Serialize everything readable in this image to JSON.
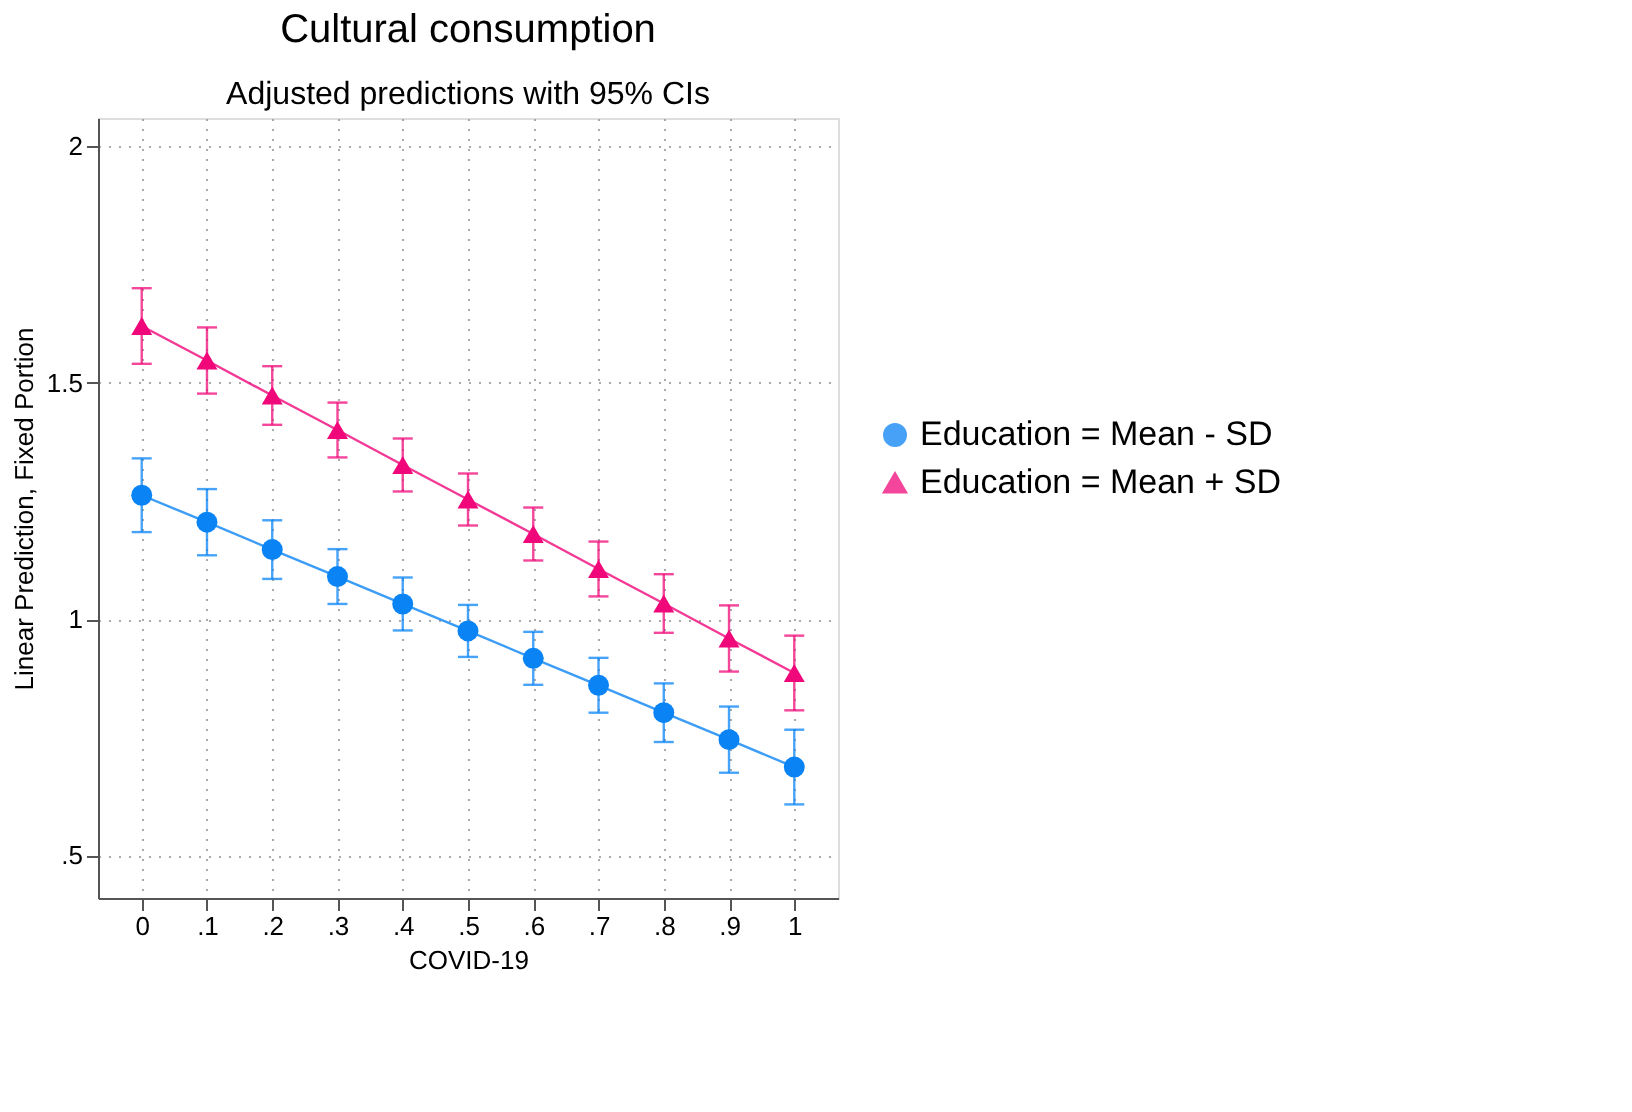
{
  "chart_data": {
    "type": "line",
    "title": "Cultural consumption",
    "subtitle": "Adjusted predictions with 95% CIs",
    "xlabel": "COVID-19",
    "ylabel": "Linear Prediction, Fixed Portion",
    "x": [
      0,
      0.1,
      0.2,
      0.3,
      0.4,
      0.5,
      0.6,
      0.7,
      0.8,
      0.9,
      1
    ],
    "series": [
      {
        "name": "Education = Mean - SD",
        "color": "#0a84f5",
        "marker": "circle",
        "values": [
          1.262,
          1.205,
          1.147,
          1.09,
          1.032,
          0.975,
          0.917,
          0.86,
          0.802,
          0.745,
          0.687
        ],
        "errors": [
          0.078,
          0.07,
          0.062,
          0.058,
          0.056,
          0.055,
          0.056,
          0.058,
          0.062,
          0.07,
          0.079
        ]
      },
      {
        "name": "Education = Mean + SD",
        "color": "#f0087a",
        "marker": "triangle",
        "values": [
          1.62,
          1.547,
          1.473,
          1.4,
          1.326,
          1.253,
          1.18,
          1.106,
          1.033,
          0.959,
          0.886
        ],
        "errors": [
          0.08,
          0.07,
          0.062,
          0.058,
          0.056,
          0.055,
          0.056,
          0.058,
          0.062,
          0.07,
          0.079
        ]
      }
    ],
    "xlim": [
      -0.067,
      1.067
    ],
    "xticks": [
      {
        "value": 0,
        "label": "0"
      },
      {
        "value": 0.1,
        "label": ".1"
      },
      {
        "value": 0.2,
        "label": ".2"
      },
      {
        "value": 0.3,
        "label": ".3"
      },
      {
        "value": 0.4,
        "label": ".4"
      },
      {
        "value": 0.5,
        "label": ".5"
      },
      {
        "value": 0.6,
        "label": ".6"
      },
      {
        "value": 0.7,
        "label": ".7"
      },
      {
        "value": 0.8,
        "label": ".8"
      },
      {
        "value": 0.9,
        "label": ".9"
      },
      {
        "value": 1,
        "label": "1"
      }
    ],
    "ylim": [
      0.41,
      2.06
    ],
    "yticks": [
      {
        "value": 0.5,
        "label": ".5"
      },
      {
        "value": 1,
        "label": "1"
      },
      {
        "value": 1.5,
        "label": "1.5"
      },
      {
        "value": 2,
        "label": "2"
      }
    ],
    "grid": true,
    "legend": "right",
    "line_style": "solid"
  }
}
